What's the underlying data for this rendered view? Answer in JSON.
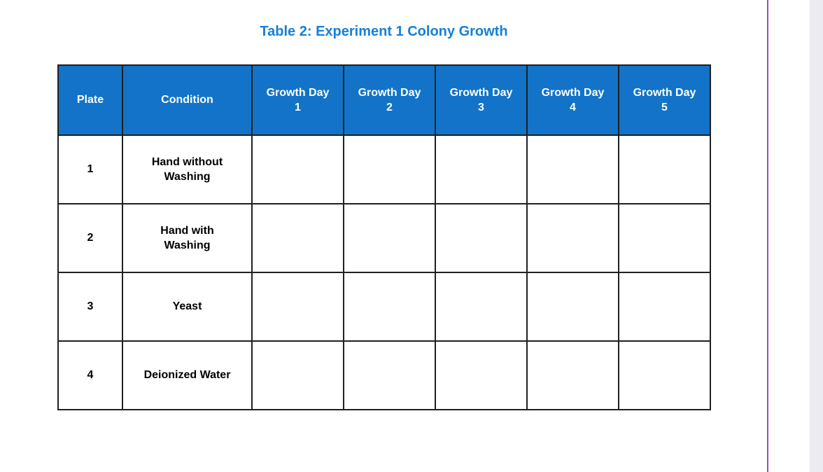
{
  "document": {
    "title": "Table 2: Experiment 1 Colony Growth"
  },
  "table": {
    "headers": [
      "Plate",
      "Condition",
      "Growth Day\n1",
      "Growth Day\n2",
      "Growth Day\n3",
      "Growth Day\n4",
      "Growth Day\n5"
    ],
    "rows": [
      {
        "plate": "1",
        "condition": "Hand without\nWashing",
        "days": [
          "",
          "",
          "",
          "",
          ""
        ]
      },
      {
        "plate": "2",
        "condition": "Hand with\nWashing",
        "days": [
          "",
          "",
          "",
          "",
          ""
        ]
      },
      {
        "plate": "3",
        "condition": "Yeast",
        "days": [
          "",
          "",
          "",
          "",
          ""
        ]
      },
      {
        "plate": "4",
        "condition": "Deionized Water",
        "days": [
          "",
          "",
          "",
          "",
          ""
        ]
      }
    ]
  },
  "colors": {
    "header_background": "#1273C8",
    "header_text": "#FFFFFF",
    "title_text": "#1680D8",
    "table_border": "#202020",
    "page_margin_line": "#9050C8",
    "scrollbar_track": "#EBEBF1"
  }
}
